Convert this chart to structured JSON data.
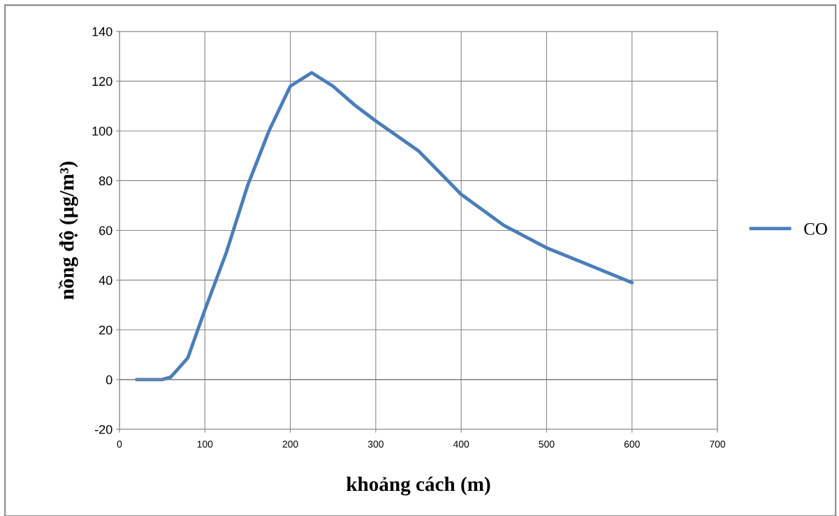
{
  "chart_data": {
    "type": "line",
    "xlabel": "khoảng cách (m)",
    "ylabel": "nồng độ (µg/m³)",
    "x": [
      20,
      50,
      60,
      80,
      100,
      125,
      150,
      175,
      200,
      225,
      250,
      275,
      300,
      350,
      400,
      450,
      500,
      550,
      600
    ],
    "series": [
      {
        "name": "CO",
        "color": "#4a7ebb",
        "values": [
          0,
          0,
          1,
          8.7,
          28,
          51,
          78,
          100,
          118,
          123.4,
          118,
          110.5,
          104,
          92,
          74.5,
          62,
          53,
          46,
          39
        ]
      }
    ],
    "xlim": [
      0,
      700
    ],
    "xticks": [
      0,
      100,
      200,
      300,
      400,
      500,
      600,
      700
    ],
    "ylim": [
      -20,
      140
    ],
    "yticks": [
      -20,
      0,
      20,
      40,
      60,
      80,
      100,
      120,
      140
    ],
    "grid": true,
    "legend": "right",
    "marker": "none",
    "line_style": "solid"
  }
}
